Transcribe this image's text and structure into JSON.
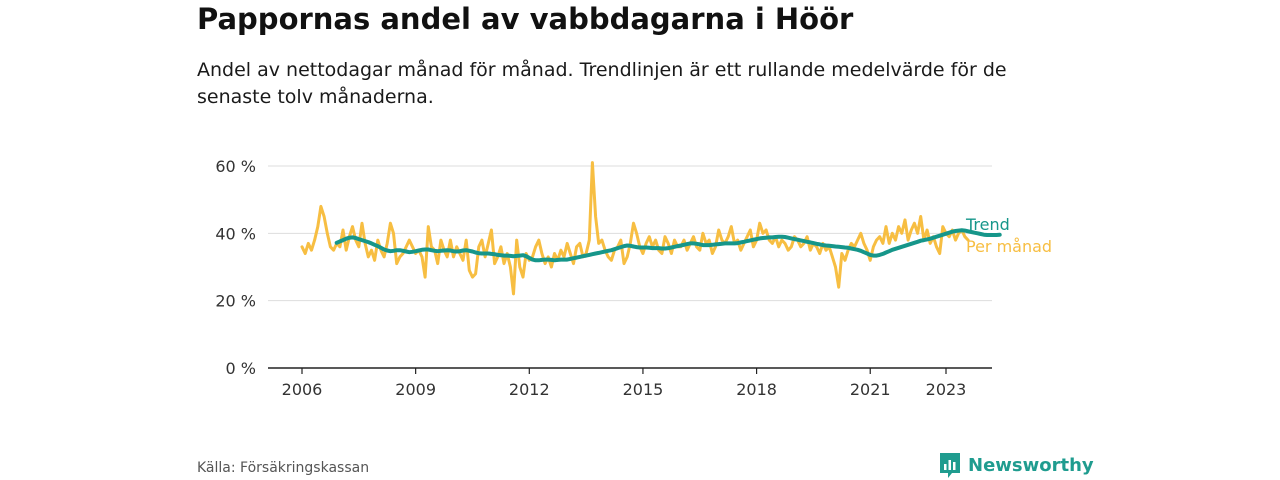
{
  "title": "Pappornas andel av vabbdagarna i Höör",
  "subtitle": "Andel av nettodagar månad för månad. Trendlinjen är ett rullande medelvärde för de senaste tolv månaderna.",
  "source": "Källa: Försäkringskassan",
  "brand": {
    "name": "Newsworthy",
    "icon": "newsworthy-bar-chart-icon"
  },
  "colors": {
    "monthly": "#F7BE42",
    "trend": "#16968A",
    "grid": "#dddddd",
    "axis": "#222222",
    "text": "#333333"
  },
  "chart_data": {
    "type": "line",
    "x_unit": "year (decimal, monthly)",
    "y_unit": "percent",
    "xlim": [
      2006,
      2023.4
    ],
    "ylim": [
      0,
      60
    ],
    "xticks": [
      2006,
      2009,
      2012,
      2015,
      2018,
      2021,
      2023
    ],
    "xtick_labels": [
      "2006",
      "2009",
      "2012",
      "2015",
      "2018",
      "2021",
      "2023"
    ],
    "yticks": [
      0,
      20,
      40,
      60
    ],
    "ytick_labels": [
      "0 %",
      "20 %",
      "40 %",
      "60 %"
    ],
    "grid": true,
    "legend_placement": "right, at line ends",
    "series": [
      {
        "name": "Per månad",
        "key": "monthly",
        "start": 2006.0,
        "step": 0.0833333,
        "values": [
          36,
          34,
          37,
          35,
          38,
          42,
          48,
          45,
          40,
          36,
          35,
          37,
          36,
          41,
          35,
          39,
          42,
          38,
          36,
          43,
          37,
          33,
          35,
          32,
          38,
          35,
          33,
          37,
          43,
          40,
          31,
          33,
          34,
          36,
          38,
          36,
          34,
          35,
          33,
          27,
          42,
          36,
          35,
          31,
          38,
          35,
          33,
          38,
          33,
          36,
          34,
          32,
          38,
          29,
          27,
          28,
          36,
          38,
          33,
          37,
          41,
          31,
          33,
          36,
          31,
          34,
          30,
          22,
          38,
          30,
          27,
          34,
          32,
          33,
          36,
          38,
          34,
          31,
          33,
          30,
          34,
          32,
          35,
          33,
          37,
          34,
          31,
          36,
          37,
          33,
          34,
          38,
          61,
          45,
          37,
          38,
          35,
          33,
          32,
          35,
          36,
          38,
          31,
          33,
          37,
          43,
          40,
          36,
          34,
          37,
          39,
          36,
          38,
          35,
          34,
          39,
          37,
          34,
          38,
          36,
          36,
          38,
          35,
          37,
          39,
          36,
          35,
          40,
          37,
          38,
          34,
          36,
          41,
          38,
          37,
          39,
          42,
          37,
          38,
          35,
          37,
          39,
          41,
          36,
          38,
          43,
          40,
          41,
          38,
          37,
          39,
          36,
          38,
          37,
          35,
          36,
          39,
          38,
          36,
          37,
          39,
          35,
          37,
          36,
          34,
          37,
          35,
          36,
          33,
          30,
          24,
          34,
          32,
          35,
          37,
          36,
          38,
          40,
          37,
          35,
          32,
          36,
          38,
          39,
          37,
          42,
          37,
          40,
          38,
          42,
          40,
          44,
          38,
          41,
          43,
          40,
          45,
          38,
          41,
          37,
          39,
          36,
          34,
          42,
          40,
          39,
          41,
          38,
          40,
          41,
          39,
          38
        ]
      },
      {
        "name": "Trend",
        "key": "trend",
        "start": 2006.917,
        "step": 0.0833333,
        "values": [
          37.2,
          37.6,
          38.0,
          38.4,
          38.7,
          38.8,
          38.6,
          38.3,
          38.0,
          37.7,
          37.4,
          37.0,
          36.6,
          36.2,
          35.7,
          35.2,
          34.9,
          34.7,
          34.8,
          35.0,
          35.0,
          34.8,
          34.6,
          34.4,
          34.5,
          34.7,
          34.9,
          35.1,
          35.2,
          35.2,
          35.0,
          34.8,
          34.7,
          34.8,
          34.9,
          35.0,
          34.9,
          34.7,
          34.6,
          34.7,
          34.9,
          35.0,
          34.8,
          34.6,
          34.3,
          34.1,
          34.0,
          34.0,
          34.0,
          33.9,
          33.8,
          33.6,
          33.5,
          33.4,
          33.4,
          33.3,
          33.2,
          33.3,
          33.4,
          33.5,
          33.2,
          32.7,
          32.2,
          32.0,
          32.0,
          32.1,
          32.2,
          32.2,
          32.1,
          32.0,
          32.1,
          32.2,
          32.2,
          32.2,
          32.4,
          32.6,
          32.8,
          33.0,
          33.2,
          33.4,
          33.6,
          33.8,
          34.0,
          34.2,
          34.4,
          34.6,
          34.8,
          35.0,
          35.3,
          35.6,
          35.9,
          36.2,
          36.4,
          36.3,
          36.1,
          35.9,
          35.8,
          35.8,
          35.8,
          35.7,
          35.6,
          35.6,
          35.6,
          35.5,
          35.5,
          35.6,
          35.8,
          36.0,
          36.2,
          36.4,
          36.6,
          36.8,
          37.0,
          37.0,
          36.9,
          36.7,
          36.5,
          36.5,
          36.5,
          36.6,
          36.7,
          36.8,
          36.9,
          37.0,
          37.0,
          37.0,
          37.0,
          37.1,
          37.3,
          37.5,
          37.7,
          37.9,
          38.1,
          38.3,
          38.5,
          38.6,
          38.7,
          38.8,
          38.8,
          38.9,
          39.0,
          39.0,
          38.9,
          38.7,
          38.5,
          38.3,
          38.1,
          37.9,
          37.7,
          37.5,
          37.3,
          37.1,
          36.9,
          36.7,
          36.5,
          36.4,
          36.3,
          36.2,
          36.1,
          36.0,
          35.9,
          35.8,
          35.7,
          35.5,
          35.3,
          35.1,
          34.8,
          34.4,
          34.0,
          33.6,
          33.4,
          33.4,
          33.6,
          33.9,
          34.3,
          34.7,
          35.1,
          35.4,
          35.7,
          36.0,
          36.3,
          36.6,
          36.9,
          37.2,
          37.5,
          37.8,
          38.0,
          38.2,
          38.4,
          38.7,
          39.0,
          39.3,
          39.6,
          39.9,
          40.2,
          40.5,
          40.7,
          40.8,
          40.9,
          40.8,
          40.6,
          40.4,
          40.2,
          40.0,
          39.8,
          39.6,
          39.5,
          39.5,
          39.5,
          39.5,
          39.6
        ]
      }
    ]
  }
}
